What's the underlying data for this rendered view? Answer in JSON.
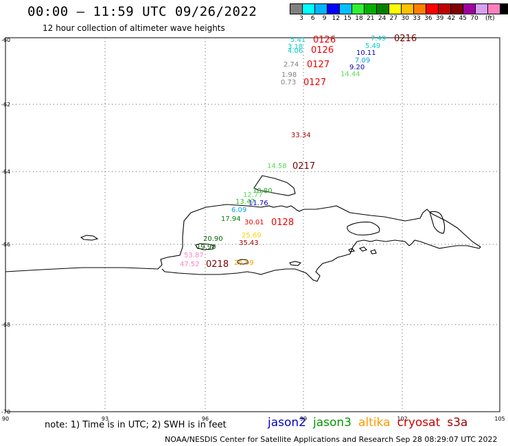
{
  "header": {
    "title": "00:00 – 11:59 UTC 09/26/2022",
    "subtitle": "12 hour collection of altimeter wave heights"
  },
  "legend": {
    "colors": [
      "#808080",
      "#00ffff",
      "#00b4ff",
      "#0000ff",
      "#00c0ff",
      "#33ee33",
      "#00b000",
      "#008000",
      "#ffff00",
      "#ffc000",
      "#ff8000",
      "#ff0000",
      "#c00000",
      "#800000",
      "#a000a0",
      "#d8a0f0",
      "#ff80c0",
      "#000000"
    ],
    "labels": [
      "3",
      "6",
      "9",
      "12",
      "15",
      "18",
      "21",
      "24",
      "27",
      "30",
      "33",
      "36",
      "39",
      "42",
      "45",
      "70",
      "(ft)"
    ]
  },
  "map_data": {
    "lon_ticks": [
      "90",
      "93",
      "96",
      "99",
      "102",
      "105"
    ],
    "lat_ticks": [
      "-60",
      "-62",
      "-64",
      "-66",
      "-68",
      "-70"
    ],
    "observations": [
      {
        "label": "5.41",
        "color": "#00cccc"
      },
      {
        "label": "0126",
        "color": "#ee0000",
        "bold": true
      },
      {
        "label": "3.18",
        "color": "#00cccc"
      },
      {
        "label": "4.06",
        "color": "#00cccc"
      },
      {
        "label": "0126",
        "color": "#ee0000",
        "bold": true
      },
      {
        "label": "7.49",
        "color": "#00cccc"
      },
      {
        "label": "0216",
        "color": "#7a0000",
        "bold": true
      },
      {
        "label": "5.49",
        "color": "#00cccc"
      },
      {
        "label": "10.11",
        "color": "#0000cc"
      },
      {
        "label": "7.09",
        "color": "#00a0e0"
      },
      {
        "label": "2.74",
        "color": "#808080"
      },
      {
        "label": "0127",
        "color": "#ee0000",
        "bold": true
      },
      {
        "label": "9.20",
        "color": "#0000aa"
      },
      {
        "label": "14.44",
        "color": "#55dd55"
      },
      {
        "label": "1.98",
        "color": "#808080"
      },
      {
        "label": "0.73",
        "color": "#808080"
      },
      {
        "label": "0127",
        "color": "#ee0000",
        "bold": true
      },
      {
        "label": "33.34",
        "color": "#aa0000"
      },
      {
        "label": "14.58",
        "color": "#55dd55"
      },
      {
        "label": "0217",
        "color": "#7a0000",
        "bold": true
      },
      {
        "label": "18.80",
        "color": "#22aa22"
      },
      {
        "label": "12.77",
        "color": "#55dd55"
      },
      {
        "label": "13.47",
        "color": "#33bb33"
      },
      {
        "label": "11.76",
        "color": "#0000cc"
      },
      {
        "label": "6.09",
        "color": "#00a0e0"
      },
      {
        "label": "17.94",
        "color": "#008800"
      },
      {
        "label": "30.01",
        "color": "#ee0000"
      },
      {
        "label": "0128",
        "color": "#ee0000",
        "bold": true
      },
      {
        "label": "20.90",
        "color": "#006600"
      },
      {
        "label": "25.69",
        "color": "#ffd000"
      },
      {
        "label": "19.90",
        "color": "#006600"
      },
      {
        "label": "35.43",
        "color": "#aa0000"
      },
      {
        "label": "53.87",
        "color": "#ff80c0"
      },
      {
        "label": "47.52",
        "color": "#ff80c0"
      },
      {
        "label": "0218",
        "color": "#7a0000",
        "bold": true
      },
      {
        "label": "26.59",
        "color": "#ff9900"
      }
    ]
  },
  "footer": {
    "note": "note:  1) Time is in UTC;  2) SWH is in feet",
    "satellites": [
      {
        "name": "jason2",
        "color": "#0000cc"
      },
      {
        "name": "jason3",
        "color": "#009900"
      },
      {
        "name": "altika",
        "color": "#ff9900"
      },
      {
        "name": "cryosat",
        "color": "#cc0000"
      },
      {
        "name": "s3a",
        "color": "#990000"
      }
    ],
    "credit": "NOAA/NESDIS Center for Satellite Applications and Research    Sep 28 08:29:07 UTC 2022"
  }
}
